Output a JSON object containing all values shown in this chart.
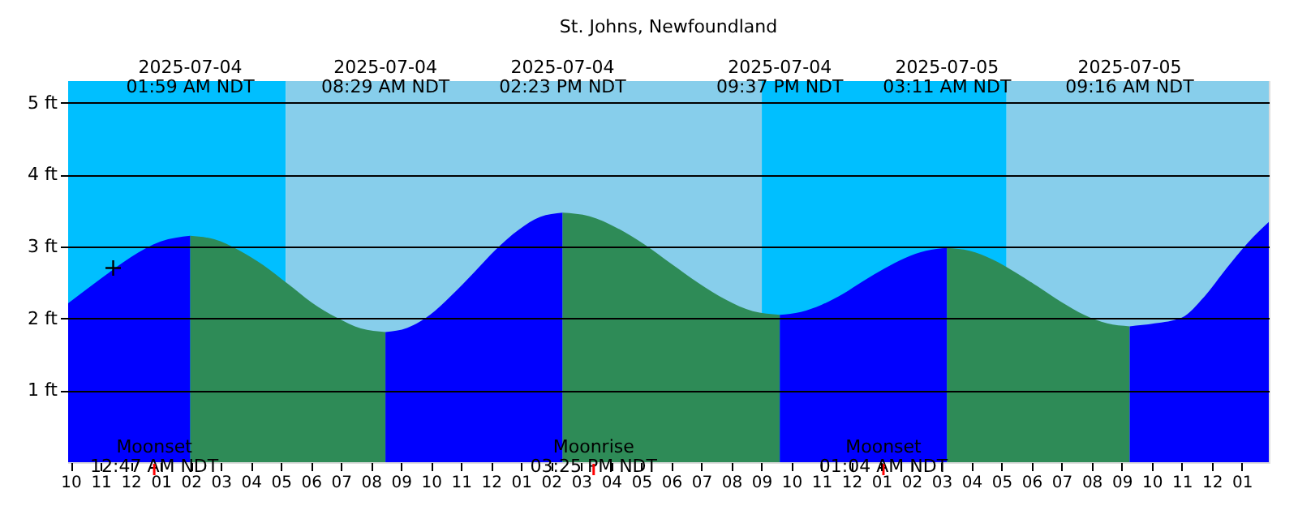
{
  "chart_data": {
    "type": "area",
    "title": "St. Johns, Newfoundland",
    "series": [
      {
        "color": "#0000ff",
        "x": [
          "2025-07-03T21:55",
          "2025-07-03T23:00",
          "2025-07-04T00:00",
          "2025-07-04T01:00",
          "2025-07-04T01:59"
        ],
        "values": [
          2.21,
          2.55,
          2.85,
          3.07,
          3.15
        ]
      },
      {
        "color": "#2e8b57",
        "x": [
          "2025-07-04T01:59",
          "2025-07-04T02:47",
          "2025-07-04T03:36",
          "2025-07-04T04:25",
          "2025-07-04T05:14",
          "2025-07-04T06:02",
          "2025-07-04T06:52",
          "2025-07-04T07:40",
          "2025-07-04T08:29"
        ],
        "values": [
          3.15,
          3.1,
          2.95,
          2.74,
          2.48,
          2.22,
          2.01,
          1.86,
          1.81
        ]
      },
      {
        "color": "#0000ff",
        "x": [
          "2025-07-04T08:29",
          "2025-07-04T09:13",
          "2025-07-04T09:58",
          "2025-07-04T10:41",
          "2025-07-04T11:26",
          "2025-07-04T12:10",
          "2025-07-04T12:55",
          "2025-07-04T13:38",
          "2025-07-04T14:23"
        ],
        "values": [
          1.81,
          1.87,
          2.05,
          2.32,
          2.64,
          2.96,
          3.23,
          3.41,
          3.47
        ]
      },
      {
        "color": "#2e8b57",
        "x": [
          "2025-07-04T14:23",
          "2025-07-04T15:17",
          "2025-07-04T16:11",
          "2025-07-04T17:06",
          "2025-07-04T18:00",
          "2025-07-04T18:55",
          "2025-07-04T19:49",
          "2025-07-04T20:43",
          "2025-07-04T21:37"
        ],
        "values": [
          3.47,
          3.42,
          3.26,
          3.03,
          2.76,
          2.49,
          2.26,
          2.1,
          2.05
        ]
      },
      {
        "color": "#0000ff",
        "x": [
          "2025-07-04T21:37",
          "2025-07-04T22:19",
          "2025-07-04T23:01",
          "2025-07-04T23:43",
          "2025-07-05T00:24",
          "2025-07-05T01:05",
          "2025-07-05T01:47",
          "2025-07-05T02:29",
          "2025-07-05T03:11"
        ],
        "values": [
          2.05,
          2.09,
          2.19,
          2.34,
          2.52,
          2.69,
          2.84,
          2.94,
          2.98
        ]
      },
      {
        "color": "#2e8b57",
        "x": [
          "2025-07-05T03:11",
          "2025-07-05T03:56",
          "2025-07-05T04:42",
          "2025-07-05T05:28",
          "2025-07-05T06:13",
          "2025-07-05T06:59",
          "2025-07-05T07:45",
          "2025-07-05T08:31",
          "2025-07-05T09:16"
        ],
        "values": [
          2.98,
          2.94,
          2.82,
          2.64,
          2.44,
          2.23,
          2.05,
          1.93,
          1.89
        ]
      },
      {
        "color": "#0000ff",
        "x": [
          "2025-07-05T09:16",
          "2025-07-05T10:06",
          "2025-07-05T11:00",
          "2025-07-05T11:45",
          "2025-07-05T12:30",
          "2025-07-05T13:12",
          "2025-07-05T13:54"
        ],
        "values": [
          1.89,
          1.93,
          2.01,
          2.3,
          2.7,
          3.05,
          3.34
        ]
      },
      {
        "type": "scatter",
        "color": "#000000",
        "marker": "cross",
        "x": [
          "2025-07-03T23:25"
        ],
        "values": [
          2.7
        ]
      }
    ],
    "bands": [
      {
        "axis": "x",
        "from": "2025-07-03T21:55",
        "to": "2025-07-04T05:10",
        "color": "#00bfff"
      },
      {
        "axis": "x",
        "from": "2025-07-04T05:10",
        "to": "2025-07-04T21:01",
        "color": "#87ceeb"
      },
      {
        "axis": "x",
        "from": "2025-07-04T21:01",
        "to": "2025-07-05T05:10",
        "color": "#00bfff"
      },
      {
        "axis": "x",
        "from": "2025-07-05T05:10",
        "to": "2025-07-05T13:54",
        "color": "#87ceeb"
      }
    ],
    "annotations": [
      {
        "text": "2025-07-04\n01:59 AM NDT",
        "x": "2025-07-04T01:59"
      },
      {
        "text": "2025-07-04\n08:29 AM NDT",
        "x": "2025-07-04T08:29"
      },
      {
        "text": "2025-07-04\n02:23 PM NDT",
        "x": "2025-07-04T14:23"
      },
      {
        "text": "2025-07-04\n09:37 PM NDT",
        "x": "2025-07-04T21:37"
      },
      {
        "text": "2025-07-05\n03:11 AM NDT",
        "x": "2025-07-05T03:11"
      },
      {
        "text": "2025-07-05\n09:16 AM NDT",
        "x": "2025-07-05T09:16"
      },
      {
        "text": "Moonset\n12:47 AM NDT",
        "x": "2025-07-04T00:47"
      },
      {
        "text": "Moonrise\n03:25 PM NDT",
        "x": "2025-07-04T15:25"
      },
      {
        "text": "Moonset\n01:04 AM NDT",
        "x": "2025-07-05T01:04"
      }
    ],
    "xlim": [
      "2025-07-03T21:55",
      "2025-07-05T13:54"
    ],
    "xticks": [
      {
        "value": "2025-07-03T22:00",
        "label": "10"
      },
      {
        "value": "2025-07-03T23:00",
        "label": "11"
      },
      {
        "value": "2025-07-04T00:00",
        "label": "12"
      },
      {
        "value": "2025-07-04T01:00",
        "label": "01"
      },
      {
        "value": "2025-07-04T02:00",
        "label": "02"
      },
      {
        "value": "2025-07-04T03:00",
        "label": "03"
      },
      {
        "value": "2025-07-04T04:00",
        "label": "04"
      },
      {
        "value": "2025-07-04T05:00",
        "label": "05"
      },
      {
        "value": "2025-07-04T06:00",
        "label": "06"
      },
      {
        "value": "2025-07-04T07:00",
        "label": "07"
      },
      {
        "value": "2025-07-04T08:00",
        "label": "08"
      },
      {
        "value": "2025-07-04T09:00",
        "label": "09"
      },
      {
        "value": "2025-07-04T10:00",
        "label": "10"
      },
      {
        "value": "2025-07-04T11:00",
        "label": "11"
      },
      {
        "value": "2025-07-04T12:00",
        "label": "12"
      },
      {
        "value": "2025-07-04T13:00",
        "label": "01"
      },
      {
        "value": "2025-07-04T14:00",
        "label": "02"
      },
      {
        "value": "2025-07-04T15:00",
        "label": "03"
      },
      {
        "value": "2025-07-04T16:00",
        "label": "04"
      },
      {
        "value": "2025-07-04T17:00",
        "label": "05"
      },
      {
        "value": "2025-07-04T18:00",
        "label": "06"
      },
      {
        "value": "2025-07-04T19:00",
        "label": "07"
      },
      {
        "value": "2025-07-04T20:00",
        "label": "08"
      },
      {
        "value": "2025-07-04T21:00",
        "label": "09"
      },
      {
        "value": "2025-07-04T22:00",
        "label": "10"
      },
      {
        "value": "2025-07-04T23:00",
        "label": "11"
      },
      {
        "value": "2025-07-05T00:00",
        "label": "12"
      },
      {
        "value": "2025-07-05T01:00",
        "label": "01"
      },
      {
        "value": "2025-07-05T02:00",
        "label": "02"
      },
      {
        "value": "2025-07-05T03:00",
        "label": "03"
      },
      {
        "value": "2025-07-05T04:00",
        "label": "04"
      },
      {
        "value": "2025-07-05T05:00",
        "label": "05"
      },
      {
        "value": "2025-07-05T06:00",
        "label": "06"
      },
      {
        "value": "2025-07-05T07:00",
        "label": "07"
      },
      {
        "value": "2025-07-05T08:00",
        "label": "08"
      },
      {
        "value": "2025-07-05T09:00",
        "label": "09"
      },
      {
        "value": "2025-07-05T10:00",
        "label": "10"
      },
      {
        "value": "2025-07-05T11:00",
        "label": "11"
      },
      {
        "value": "2025-07-05T12:00",
        "label": "12"
      },
      {
        "value": "2025-07-05T13:00",
        "label": "01"
      }
    ],
    "ylim": [
      0,
      5.3
    ],
    "yticks": [
      {
        "value": 1,
        "label": "1 ft"
      },
      {
        "value": 2,
        "label": "2 ft"
      },
      {
        "value": 3,
        "label": "3 ft"
      },
      {
        "value": 4,
        "label": "4 ft"
      },
      {
        "value": 5,
        "label": "5 ft"
      }
    ],
    "grid": "y"
  }
}
